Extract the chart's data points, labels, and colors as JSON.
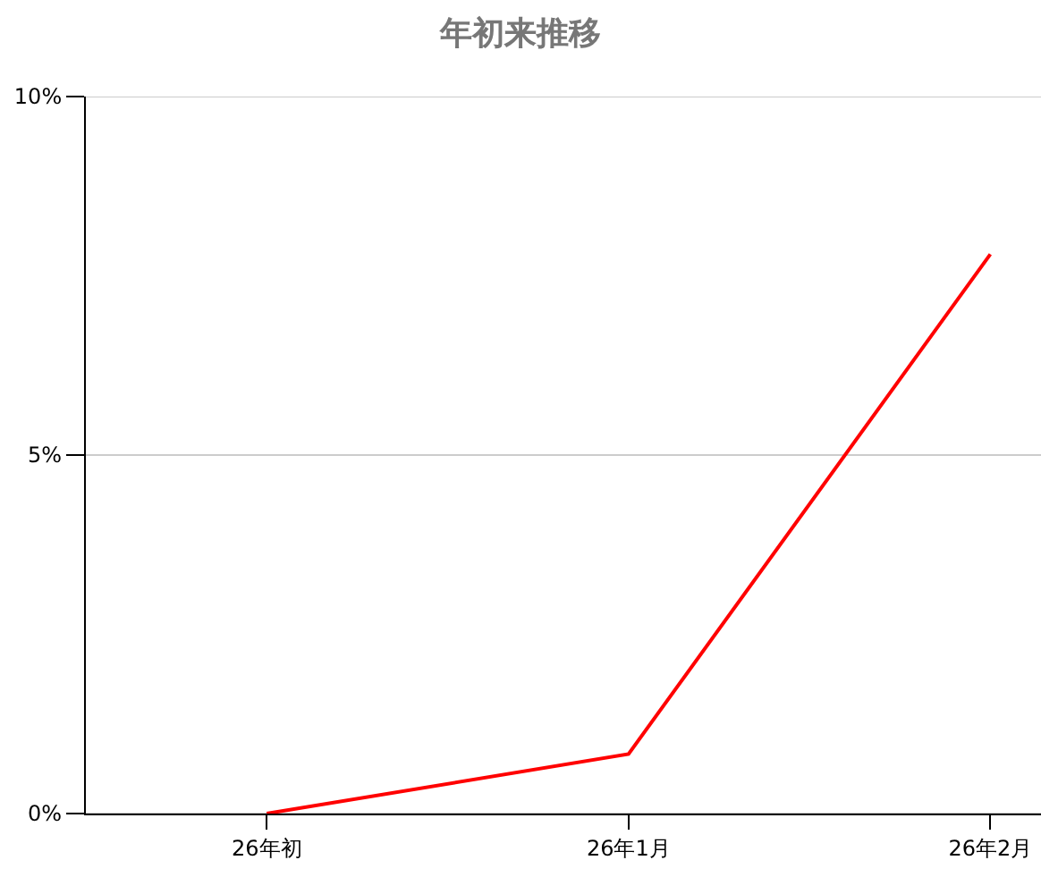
{
  "chart_data": {
    "type": "line",
    "title": "年初来推移",
    "categories": [
      "26年初",
      "26年1月",
      "26年2月"
    ],
    "series": [
      {
        "color": "#ff0000",
        "values": [
          0,
          0.83,
          7.8
        ]
      }
    ],
    "ylim": [
      0,
      10
    ],
    "yticks": [
      {
        "value": 0,
        "label": "0%"
      },
      {
        "value": 5,
        "label": "5%"
      },
      {
        "value": 10,
        "label": "10%"
      }
    ],
    "grid": "y",
    "marker": "none",
    "line_style": "solid"
  }
}
